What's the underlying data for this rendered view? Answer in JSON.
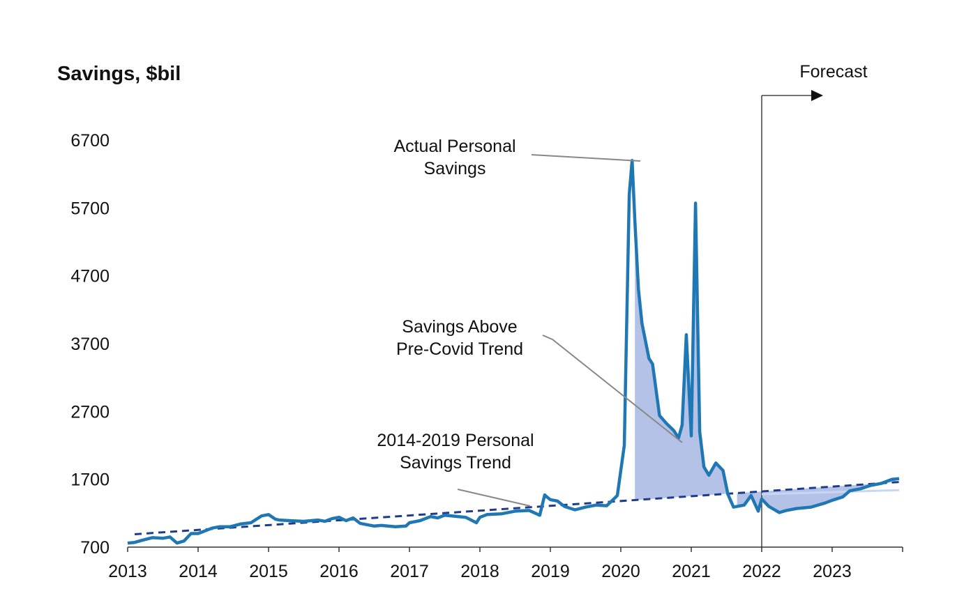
{
  "colors": {
    "actual_line": "#1f78b4",
    "trend_line": "#1f3c8c",
    "fill_above": "#b4c2e8",
    "fill_below": "#b4c2e8",
    "axis": "#333333",
    "annotation": "#888888"
  },
  "chart_data": {
    "type": "line",
    "ylabel": "Savings,  $bil",
    "ylim": [
      700,
      6700
    ],
    "yticks": [
      "700",
      "1700",
      "2700",
      "3700",
      "4700",
      "5700",
      "6700"
    ],
    "xlim": [
      2013,
      2024
    ],
    "xticks": [
      "2013",
      "2014",
      "2015",
      "2016",
      "2017",
      "2018",
      "2019",
      "2020",
      "2021",
      "2022",
      "2023"
    ],
    "grid": false,
    "forecast_start": 2022.0,
    "annotations": {
      "forecast": "Forecast",
      "actual": [
        "Actual Personal",
        "Savings"
      ],
      "above": [
        "Savings Above",
        "Pre-Covid Trend"
      ],
      "trend": [
        "2014-2019 Personal",
        "Savings Trend"
      ]
    },
    "series": [
      {
        "key": "actual",
        "x": [
          2013.0,
          2013.1,
          2013.2,
          2013.35,
          2013.5,
          2013.6,
          2013.7,
          2013.8,
          2013.9,
          2014.0,
          2014.1,
          2014.2,
          2014.3,
          2014.45,
          2014.6,
          2014.75,
          2014.9,
          2015.0,
          2015.1,
          2015.15,
          2015.3,
          2015.5,
          2015.7,
          2015.8,
          2015.9,
          2016.0,
          2016.1,
          2016.2,
          2016.3,
          2016.5,
          2016.6,
          2016.8,
          2016.95,
          2017.0,
          2017.15,
          2017.3,
          2017.4,
          2017.5,
          2017.7,
          2017.8,
          2017.95,
          2018.0,
          2018.1,
          2018.3,
          2018.5,
          2018.7,
          2018.85,
          2018.92,
          2018.95,
          2019.0,
          2019.1,
          2019.2,
          2019.35,
          2019.5,
          2019.65,
          2019.8,
          2019.95,
          2020.05,
          2020.12,
          2020.16,
          2020.2,
          2020.25,
          2020.3,
          2020.4,
          2020.45,
          2020.55,
          2020.65,
          2020.75,
          2020.82,
          2020.87,
          2020.93,
          2021.0,
          2021.06,
          2021.12,
          2021.18,
          2021.25,
          2021.35,
          2021.45,
          2021.52,
          2021.6,
          2021.75,
          2021.85,
          2021.95,
          2022.0,
          2022.1,
          2022.25,
          2022.35,
          2022.5,
          2022.7,
          2022.9,
          2023.0,
          2023.15,
          2023.25,
          2023.4,
          2023.55,
          2023.7,
          2023.85,
          2023.95
        ],
        "y": [
          760,
          770,
          800,
          840,
          830,
          850,
          760,
          790,
          900,
          900,
          940,
          980,
          1000,
          1000,
          1040,
          1060,
          1160,
          1180,
          1110,
          1100,
          1090,
          1080,
          1100,
          1080,
          1120,
          1140,
          1090,
          1130,
          1050,
          1010,
          1020,
          1000,
          1010,
          1060,
          1090,
          1150,
          1130,
          1170,
          1150,
          1140,
          1060,
          1140,
          1180,
          1190,
          1230,
          1240,
          1170,
          1470,
          1440,
          1400,
          1380,
          1300,
          1250,
          1290,
          1320,
          1310,
          1460,
          2200,
          5900,
          6400,
          5500,
          4500,
          4000,
          3480,
          3400,
          2640,
          2520,
          2420,
          2310,
          2500,
          3830,
          2340,
          5770,
          2400,
          1880,
          1760,
          1940,
          1830,
          1480,
          1290,
          1320,
          1460,
          1230,
          1410,
          1300,
          1210,
          1240,
          1270,
          1290,
          1350,
          1390,
          1440,
          1530,
          1560,
          1610,
          1640,
          1700,
          1710
        ]
      },
      {
        "key": "trend",
        "x": [
          2013.1,
          2023.95
        ],
        "y": [
          890,
          1660
        ]
      },
      {
        "key": "trend_light",
        "x": [
          2022.0,
          2023.95
        ],
        "y": [
          1480,
          1540
        ]
      }
    ]
  }
}
